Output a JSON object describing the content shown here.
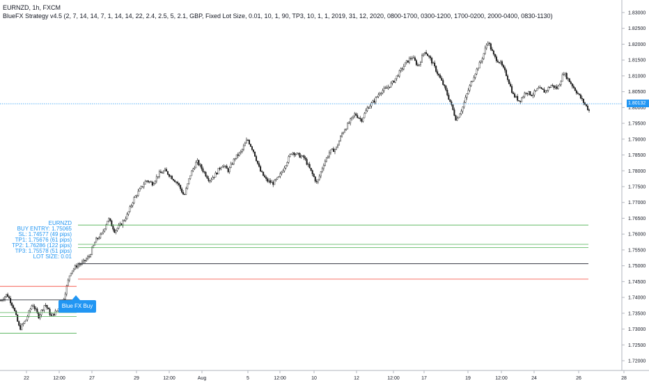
{
  "header": {
    "symbol_line": "EURNZD, 1h, FXCM",
    "strategy_line": "BlueFX Strategy v4.5 (2, 7, 14, 14, 7, 1, 14, 14, 22, 2.4, 2.5, 5, 2.1, GBP, Fixed Lot Size, 0.01, 10, 1, 90, TP3, 10, 1, 1, 2019, 31, 12, 2020, 0800-1700, 0300-1200, 1700-0200, 2000-0400, 0830-1130)"
  },
  "annotation": {
    "lines": [
      "EURNZD",
      "BUY ENTRY: 1.75065",
      "SL: 1.74577 (49 pips)",
      "TP1: 1.75676 (61 pips)",
      "TP2: 1.76286 (122 pips)",
      "TP3: 1.75578 (51 pips)",
      "LOT SIZE: 0.01"
    ]
  },
  "signal_label": "Blue FX Buy",
  "last_price_label": "1.80132",
  "colors": {
    "price_line": "#2196f3",
    "candle": "#1c1c1c",
    "tp": "#4caf50",
    "sl": "#f44336",
    "entry": "#131722",
    "axis_text": "#131722",
    "badge": "#2196f3"
  },
  "chart_data": {
    "type": "candlestick",
    "symbol": "EURNZD",
    "timeframe": "1h",
    "source": "FXCM",
    "y_ticks": [
      "1.83000",
      "1.82500",
      "1.82000",
      "1.81500",
      "1.81000",
      "1.80500",
      "1.80000",
      "1.79500",
      "1.79000",
      "1.78500",
      "1.78000",
      "1.77500",
      "1.77000",
      "1.76500",
      "1.76000",
      "1.75500",
      "1.75000",
      "1.74500",
      "1.74000",
      "1.73500",
      "1.73000",
      "1.72500",
      "1.72000"
    ],
    "y_range": [
      1.716,
      1.832
    ],
    "x_ticks": [
      "22",
      "12:00",
      "27",
      "29",
      "12:00",
      "Aug",
      "5",
      "12:00",
      "10",
      "12",
      "12:00",
      "17",
      "19",
      "12:00",
      "24",
      "26",
      "28"
    ],
    "last_price": 1.80132,
    "levels": [
      {
        "label": "TP2",
        "value": 1.76286,
        "color": "#4caf50"
      },
      {
        "label": "TP1",
        "value": 1.75676,
        "color": "#4caf50"
      },
      {
        "label": "TP3",
        "value": 1.75578,
        "color": "#4caf50"
      },
      {
        "label": "BUY ENTRY",
        "value": 1.75065,
        "color": "#131722"
      },
      {
        "label": "SL",
        "value": 1.74577,
        "color": "#f44336"
      }
    ],
    "close_path": [
      [
        0,
        1.739
      ],
      [
        2,
        1.741
      ],
      [
        4,
        1.737
      ],
      [
        6,
        1.73
      ],
      [
        8,
        1.733
      ],
      [
        10,
        1.738
      ],
      [
        12,
        1.734
      ],
      [
        14,
        1.738
      ],
      [
        16,
        1.734
      ],
      [
        18,
        1.736
      ],
      [
        20,
        1.74
      ],
      [
        22,
        1.748
      ],
      [
        24,
        1.75
      ],
      [
        26,
        1.751
      ],
      [
        28,
        1.753
      ],
      [
        30,
        1.758
      ],
      [
        32,
        1.76
      ],
      [
        34,
        1.765
      ],
      [
        36,
        1.761
      ],
      [
        38,
        1.763
      ],
      [
        40,
        1.766
      ],
      [
        42,
        1.771
      ],
      [
        44,
        1.774
      ],
      [
        46,
        1.777
      ],
      [
        48,
        1.776
      ],
      [
        50,
        1.779
      ],
      [
        52,
        1.78
      ],
      [
        54,
        1.778
      ],
      [
        56,
        1.776
      ],
      [
        58,
        1.772
      ],
      [
        60,
        1.779
      ],
      [
        62,
        1.783
      ],
      [
        64,
        1.78
      ],
      [
        66,
        1.777
      ],
      [
        68,
        1.779
      ],
      [
        70,
        1.782
      ],
      [
        72,
        1.78
      ],
      [
        74,
        1.784
      ],
      [
        76,
        1.786
      ],
      [
        78,
        1.79
      ],
      [
        80,
        1.786
      ],
      [
        82,
        1.78
      ],
      [
        84,
        1.777
      ],
      [
        86,
        1.776
      ],
      [
        88,
        1.778
      ],
      [
        90,
        1.782
      ],
      [
        92,
        1.786
      ],
      [
        94,
        1.785
      ],
      [
        96,
        1.784
      ],
      [
        98,
        1.78
      ],
      [
        100,
        1.776
      ],
      [
        102,
        1.782
      ],
      [
        104,
        1.786
      ],
      [
        106,
        1.787
      ],
      [
        108,
        1.792
      ],
      [
        110,
        1.795
      ],
      [
        112,
        1.798
      ],
      [
        114,
        1.796
      ],
      [
        116,
        1.8
      ],
      [
        118,
        1.802
      ],
      [
        120,
        1.805
      ],
      [
        122,
        1.806
      ],
      [
        124,
        1.808
      ],
      [
        126,
        1.811
      ],
      [
        128,
        1.814
      ],
      [
        130,
        1.816
      ],
      [
        132,
        1.813
      ],
      [
        134,
        1.818
      ],
      [
        136,
        1.815
      ],
      [
        138,
        1.811
      ],
      [
        140,
        1.807
      ],
      [
        142,
        1.802
      ],
      [
        144,
        1.796
      ],
      [
        146,
        1.8
      ],
      [
        148,
        1.806
      ],
      [
        150,
        1.811
      ],
      [
        152,
        1.815
      ],
      [
        154,
        1.821
      ],
      [
        156,
        1.816
      ],
      [
        158,
        1.814
      ],
      [
        160,
        1.81
      ],
      [
        162,
        1.804
      ],
      [
        164,
        1.802
      ],
      [
        166,
        1.805
      ],
      [
        168,
        1.804
      ],
      [
        170,
        1.806
      ],
      [
        172,
        1.805
      ],
      [
        174,
        1.807
      ],
      [
        176,
        1.806
      ],
      [
        178,
        1.811
      ],
      [
        180,
        1.808
      ],
      [
        182,
        1.805
      ],
      [
        184,
        1.802
      ],
      [
        186,
        1.799
      ]
    ]
  }
}
